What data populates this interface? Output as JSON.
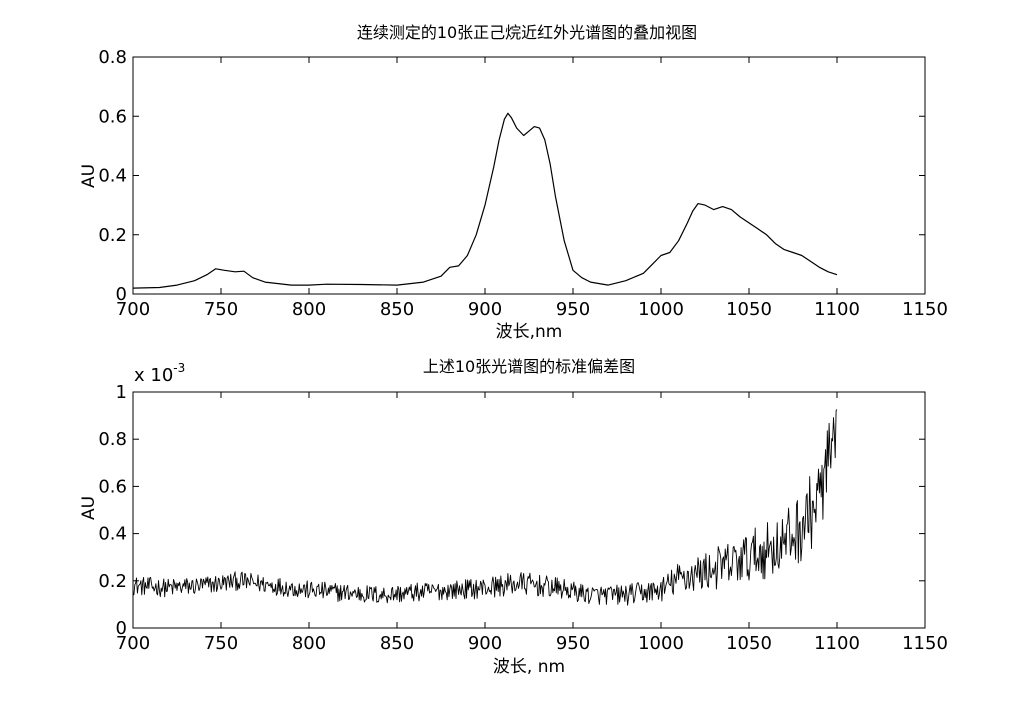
{
  "chart_data": [
    {
      "type": "line",
      "title": "连续测定的10张正己烷近红外光谱图的叠加视图",
      "xlabel": "波长,nm",
      "ylabel": "AU",
      "xlim": [
        700,
        1150
      ],
      "ylim": [
        0,
        0.8
      ],
      "xticks": [
        700,
        750,
        800,
        850,
        900,
        950,
        1000,
        1050,
        1100,
        1150
      ],
      "yticks": [
        0,
        0.2,
        0.4,
        0.6,
        0.8
      ],
      "xtick_labels": [
        "700",
        "750",
        "800",
        "850",
        "900",
        "950",
        "1000",
        "1050",
        "1100",
        "1150"
      ],
      "ytick_labels": [
        "0",
        "0.2",
        "0.4",
        "0.6",
        "0.8"
      ],
      "grid": false,
      "series": [
        {
          "color": "#000000",
          "x": [
            700,
            715,
            725,
            735,
            742,
            747,
            752,
            758,
            763,
            768,
            775,
            790,
            800,
            810,
            830,
            850,
            865,
            875,
            880,
            885,
            890,
            895,
            900,
            905,
            908,
            911,
            913,
            915,
            918,
            922,
            925,
            928,
            931,
            934,
            937,
            940,
            945,
            950,
            955,
            960,
            970,
            980,
            990,
            995,
            1000,
            1005,
            1010,
            1015,
            1018,
            1021,
            1025,
            1030,
            1035,
            1040,
            1045,
            1050,
            1055,
            1060,
            1065,
            1070,
            1075,
            1080,
            1085,
            1090,
            1095,
            1100
          ],
          "y": [
            0.02,
            0.022,
            0.03,
            0.045,
            0.065,
            0.085,
            0.08,
            0.075,
            0.077,
            0.055,
            0.04,
            0.03,
            0.03,
            0.033,
            0.032,
            0.03,
            0.04,
            0.06,
            0.09,
            0.095,
            0.13,
            0.2,
            0.3,
            0.43,
            0.52,
            0.59,
            0.61,
            0.595,
            0.56,
            0.535,
            0.55,
            0.565,
            0.56,
            0.52,
            0.44,
            0.33,
            0.18,
            0.08,
            0.055,
            0.04,
            0.03,
            0.045,
            0.07,
            0.1,
            0.13,
            0.14,
            0.18,
            0.24,
            0.28,
            0.305,
            0.3,
            0.285,
            0.295,
            0.285,
            0.26,
            0.24,
            0.22,
            0.2,
            0.17,
            0.15,
            0.14,
            0.13,
            0.11,
            0.09,
            0.075,
            0.065
          ]
        }
      ]
    },
    {
      "type": "line",
      "title": "上述10张光谱图的标准偏差图",
      "xlabel": "波长, nm",
      "ylabel": "AU",
      "y_multiplier": "x 10",
      "y_multiplier_exp": "-3",
      "xlim": [
        700,
        1150
      ],
      "ylim": [
        0,
        1
      ],
      "xticks": [
        700,
        750,
        800,
        850,
        900,
        950,
        1000,
        1050,
        1100,
        1150
      ],
      "yticks": [
        0,
        0.2,
        0.4,
        0.6,
        0.8,
        1
      ],
      "xtick_labels": [
        "700",
        "750",
        "800",
        "850",
        "900",
        "950",
        "1000",
        "1050",
        "1100",
        "1150"
      ],
      "ytick_labels": [
        "0",
        "0.2",
        "0.4",
        "0.6",
        "0.8",
        "1"
      ],
      "grid": false,
      "series": [
        {
          "color": "#000000",
          "x": [
            700,
            720,
            740,
            760,
            780,
            800,
            820,
            840,
            860,
            880,
            900,
            920,
            940,
            960,
            980,
            1000,
            1010,
            1020,
            1030,
            1040,
            1050,
            1060,
            1070,
            1080,
            1090,
            1095,
            1100
          ],
          "y": [
            0.18,
            0.17,
            0.18,
            0.2,
            0.18,
            0.16,
            0.15,
            0.14,
            0.15,
            0.16,
            0.17,
            0.19,
            0.17,
            0.14,
            0.14,
            0.16,
            0.21,
            0.23,
            0.25,
            0.27,
            0.3,
            0.33,
            0.36,
            0.43,
            0.55,
            0.7,
            0.78
          ],
          "noise_amplitude": [
            0.04,
            0.04,
            0.04,
            0.04,
            0.04,
            0.04,
            0.04,
            0.04,
            0.04,
            0.04,
            0.045,
            0.05,
            0.045,
            0.04,
            0.045,
            0.05,
            0.07,
            0.08,
            0.09,
            0.1,
            0.11,
            0.12,
            0.13,
            0.15,
            0.17,
            0.17,
            0.15
          ]
        }
      ]
    }
  ]
}
